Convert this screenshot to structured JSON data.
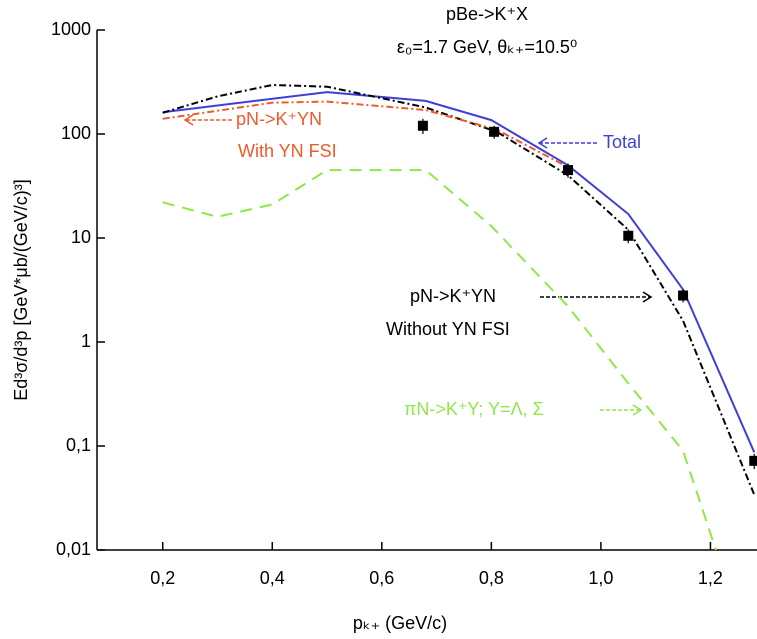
{
  "chart_data": {
    "type": "line",
    "title": "pBe->K⁺X",
    "subtitle": "ε₀=1.7 GeV, θₖ₊=10.5⁰",
    "x_label": "pₖ₊ (GeV/c)",
    "y_label": "Ed³σ/d³p [GeV*μb/(GeV/c)³]",
    "log_y": true,
    "xlim": [
      0.08,
      1.285
    ],
    "ylim": [
      0.01,
      1000
    ],
    "xticks": [
      {
        "value": 0.2,
        "label": "0,2"
      },
      {
        "value": 0.4,
        "label": "0,4"
      },
      {
        "value": 0.6,
        "label": "0,6"
      },
      {
        "value": 0.8,
        "label": "0,8"
      },
      {
        "value": 1.0,
        "label": "1,0"
      },
      {
        "value": 1.2,
        "label": "1,2"
      }
    ],
    "yticks": [
      {
        "value": 0.01,
        "label": "0,01"
      },
      {
        "value": 0.1,
        "label": "0,1"
      },
      1,
      10,
      100,
      1000
    ],
    "series": [
      {
        "color": "#3f3fd6",
        "dash": "solid",
        "x": [
          0.2,
          0.5,
          0.68,
          0.8,
          0.94,
          1.05,
          1.15,
          1.28
        ],
        "values": [
          162,
          253,
          208,
          136,
          50,
          17,
          3.2,
          0.087
        ]
      },
      {
        "color": "#000000",
        "dash": "dashdot",
        "x": [
          0.2,
          0.3,
          0.4,
          0.5,
          0.68,
          0.81,
          0.94,
          1.05,
          1.15,
          1.28
        ],
        "values": [
          160,
          230,
          296,
          285,
          180,
          105,
          40,
          12,
          1.6,
          0.034
        ]
      },
      {
        "color": "#ef5a2a",
        "dash": "dashdot",
        "x": [
          0.2,
          0.4,
          0.5,
          0.68,
          0.81,
          0.94
        ],
        "values": [
          140,
          200,
          205,
          170,
          110,
          48
        ]
      },
      {
        "color": "#8ee84a",
        "dash": "dashed",
        "x": [
          0.2,
          0.3,
          0.4,
          0.5,
          0.68,
          0.8,
          0.94,
          1.05,
          1.15,
          1.21
        ],
        "values": [
          22,
          16,
          21,
          45,
          45,
          13,
          2.2,
          0.4,
          0.09,
          0.01
        ]
      }
    ],
    "points": {
      "color": "#000000",
      "x": [
        0.675,
        0.805,
        0.94,
        1.05,
        1.15,
        1.28
      ],
      "values": [
        120,
        105,
        45,
        10.5,
        2.8,
        0.072
      ],
      "errors": [
        20,
        15,
        7,
        1.6,
        0.4,
        0.012
      ]
    },
    "annotations": [
      {
        "text": "pN->K⁺YN",
        "color": "#ef5a2a"
      },
      {
        "text": "With YN FSI",
        "color": "#ef5a2a"
      },
      {
        "text": "Total",
        "color": "#3f3fd6"
      },
      {
        "text": "pN->K⁺YN",
        "color": "#000000"
      },
      {
        "text": "Without YN FSI",
        "color": "#000000"
      },
      {
        "text": "πN->K⁺Y; Y=Λ, Σ",
        "color": "#8ee84a"
      }
    ]
  }
}
